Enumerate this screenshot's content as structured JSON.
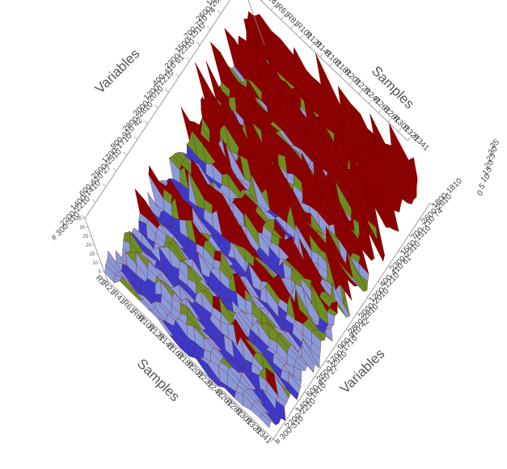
{
  "chart_data": {
    "type": "surface-3d",
    "title": "",
    "axes": {
      "samples": {
        "title": "Samples",
        "ticks": [
          "R1",
          "R21",
          "R41",
          "R61",
          "R81",
          "R101",
          "R121",
          "R141",
          "R161",
          "R181",
          "R201",
          "R221",
          "R241",
          "R261",
          "R281",
          "R301",
          "R321",
          "R341"
        ]
      },
      "variables": {
        "title": "Variables",
        "ticks": [
          "1800-1810",
          "2600-2610",
          "700-710 74",
          "1500-1510",
          "2300-2310",
          "400-410 61",
          "1200-1210",
          "2000-2010",
          "2800-2810",
          "900-910 42",
          "1700-1710",
          "2500-2510",
          "600-610 27",
          "1400-1410",
          "2200-2210",
          "# 300-310"
        ]
      },
      "z": {
        "ticks": [
          "0",
          "5",
          "10",
          "15",
          "20",
          "25",
          "30",
          "35"
        ],
        "range": [
          0,
          35
        ]
      }
    },
    "surface_colors": {
      "low": "#3a3acc",
      "mid_low": "#8a9ad8",
      "mid": "#6b8e23",
      "high": "#8b0000"
    },
    "grid": false,
    "legend": "none"
  }
}
